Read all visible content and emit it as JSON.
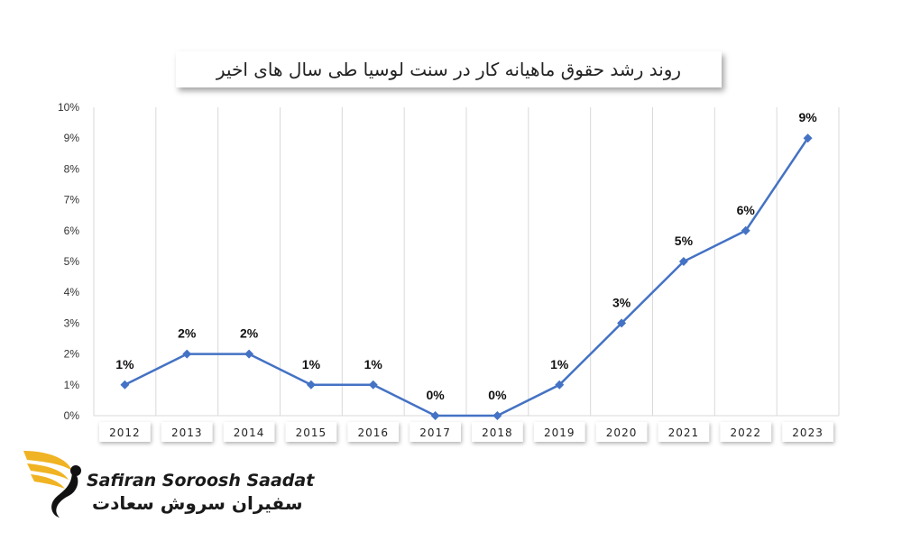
{
  "chart_data": {
    "type": "line",
    "title": "روند رشد حقوق ماهیانه کار در سنت لوسیا طی سال های اخیر",
    "categories": [
      "2012",
      "2013",
      "2014",
      "2015",
      "2016",
      "2017",
      "2018",
      "2019",
      "2020",
      "2021",
      "2022",
      "2023"
    ],
    "series": [
      {
        "values": [
          1,
          2,
          2,
          1,
          1,
          0,
          0,
          1,
          3,
          5,
          6,
          9
        ],
        "labels": [
          "1%",
          "2%",
          "2%",
          "1%",
          "1%",
          "0%",
          "0%",
          "1%",
          "3%",
          "5%",
          "6%",
          "9%"
        ]
      }
    ],
    "ylim": [
      0,
      10
    ],
    "yticks": [
      "0%",
      "1%",
      "2%",
      "3%",
      "4%",
      "5%",
      "6%",
      "7%",
      "8%",
      "9%",
      "10%"
    ],
    "grid": "vertical",
    "line_color": "#4472C4"
  },
  "brand": {
    "name_en": "Safiran Soroosh Saadat",
    "name_fa": "سفیران سروش سعادت"
  }
}
